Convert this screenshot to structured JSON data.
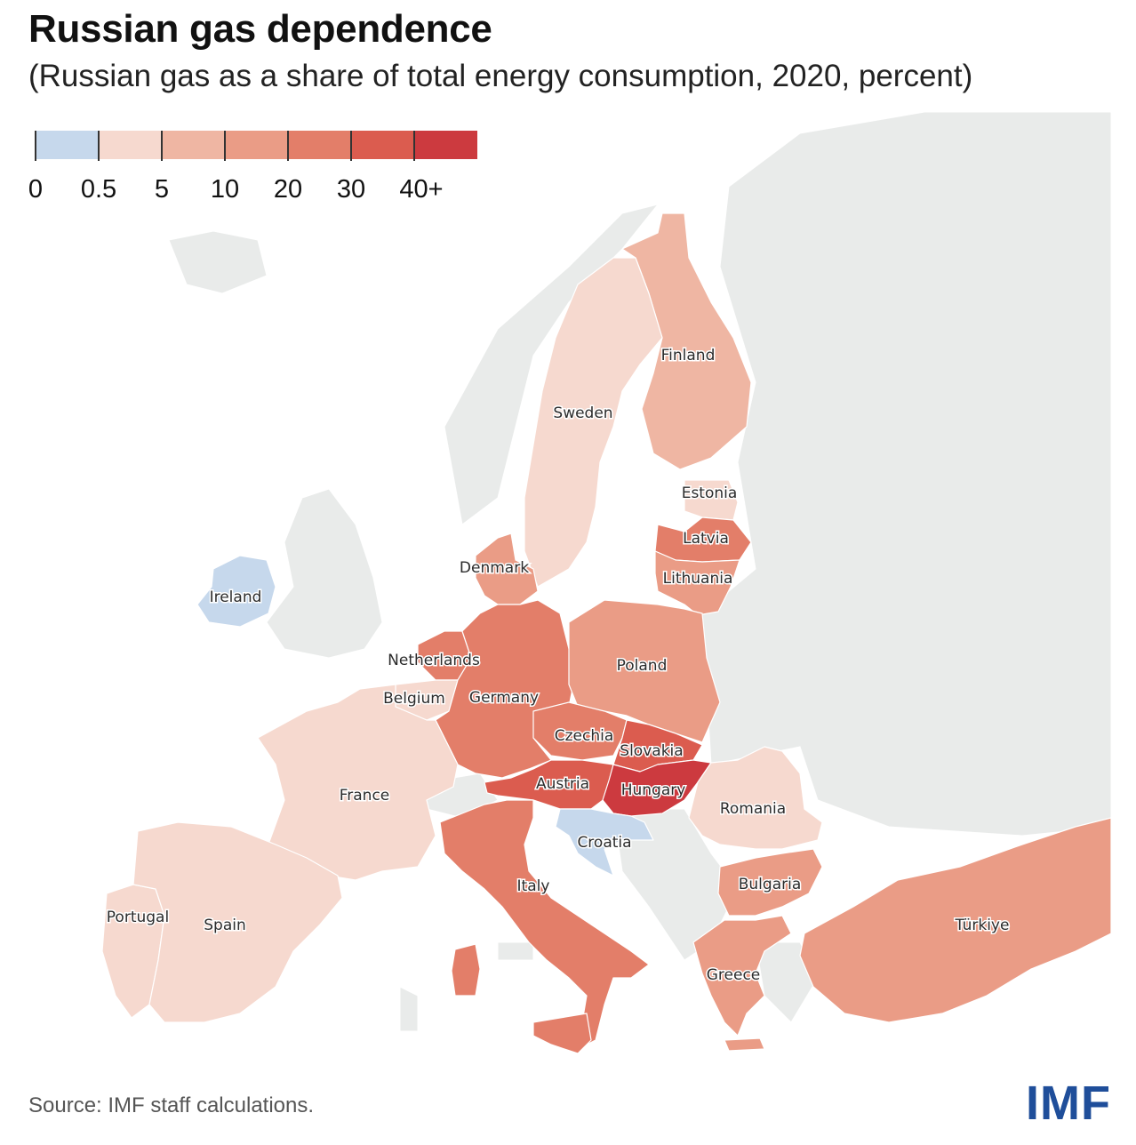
{
  "title": "Russian gas dependence",
  "subtitle": "(Russian gas as a share of total energy consumption, 2020, percent)",
  "legend": {
    "tick_labels": [
      "0",
      "0.5",
      "5",
      "10",
      "20",
      "30",
      "40+"
    ],
    "colors": [
      "#c6d8ec",
      "#f6d9cf",
      "#efb6a3",
      "#ea9c86",
      "#e37e69",
      "#db5c4f",
      "#cc3a3f"
    ]
  },
  "map": {
    "type": "choropleth",
    "background_land_color": "#e9ebea",
    "regions": [
      {
        "name": "Finland",
        "bin": "5-10"
      },
      {
        "name": "Sweden",
        "bin": "0.5-5"
      },
      {
        "name": "Estonia",
        "bin": "0.5-5"
      },
      {
        "name": "Latvia",
        "bin": "20-30"
      },
      {
        "name": "Lithuania",
        "bin": "10-20"
      },
      {
        "name": "Denmark",
        "bin": "10-20"
      },
      {
        "name": "Ireland",
        "bin": "0-0.5"
      },
      {
        "name": "Netherlands",
        "bin": "20-30"
      },
      {
        "name": "Belgium",
        "bin": "0.5-5"
      },
      {
        "name": "Germany",
        "bin": "20-30"
      },
      {
        "name": "Poland",
        "bin": "10-20"
      },
      {
        "name": "Czechia",
        "bin": "20-30"
      },
      {
        "name": "Slovakia",
        "bin": "30-40"
      },
      {
        "name": "Austria",
        "bin": "30-40"
      },
      {
        "name": "Hungary",
        "bin": "40+"
      },
      {
        "name": "France",
        "bin": "0.5-5"
      },
      {
        "name": "Romania",
        "bin": "0.5-5"
      },
      {
        "name": "Croatia",
        "bin": "0-0.5"
      },
      {
        "name": "Italy",
        "bin": "20-30"
      },
      {
        "name": "Bulgaria",
        "bin": "10-20"
      },
      {
        "name": "Portugal",
        "bin": "0.5-5"
      },
      {
        "name": "Spain",
        "bin": "0.5-5"
      },
      {
        "name": "Greece",
        "bin": "10-20"
      },
      {
        "name": "Türkiye",
        "bin": "10-20"
      }
    ]
  },
  "source": "Source: IMF staff calculations.",
  "logo_text": "IMF"
}
